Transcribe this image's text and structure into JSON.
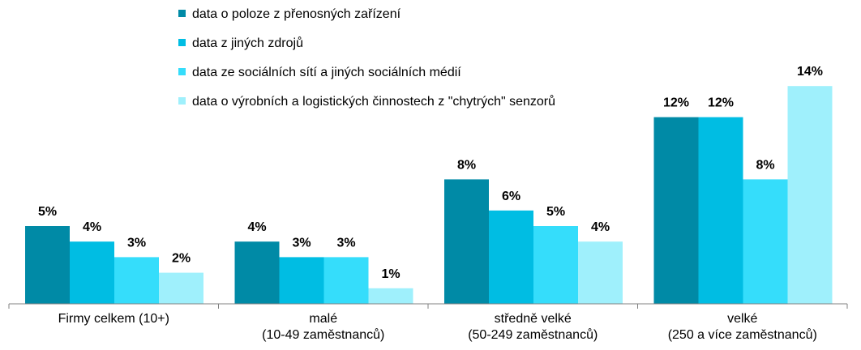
{
  "chart_data": {
    "type": "bar",
    "categories": [
      [
        "Firmy celkem (10+)"
      ],
      [
        "malé",
        "(10-49 zaměstnanců)"
      ],
      [
        "středně velké",
        "(50-249 zaměstnanců)"
      ],
      [
        "velké",
        "(250 a více zaměstnanců)"
      ]
    ],
    "series": [
      {
        "name": "data o poloze z přenosných zařízení",
        "color": "#008aa6",
        "values": [
          5,
          4,
          8,
          12
        ],
        "labels": [
          "5%",
          "4%",
          "8%",
          "12%"
        ]
      },
      {
        "name": "data z jiných zdrojů",
        "color": "#00bde3",
        "values": [
          4,
          3,
          6,
          12
        ],
        "labels": [
          "4%",
          "3%",
          "6%",
          "12%"
        ]
      },
      {
        "name": "data ze sociálních sítí a jiných sociálních médií",
        "color": "#35ddfb",
        "values": [
          3,
          3,
          5,
          8
        ],
        "labels": [
          "3%",
          "3%",
          "5%",
          "8%"
        ]
      },
      {
        "name": "data o výrobních a logistických činnostech z \"chytrých\" senzorů",
        "color": "#9ff0fc",
        "values": [
          2,
          1,
          4,
          14
        ],
        "labels": [
          "2%",
          "1%",
          "4%",
          "14%"
        ]
      }
    ],
    "title": "",
    "xlabel": "",
    "ylabel": "",
    "unit": "%",
    "ylim": [
      0,
      14
    ],
    "grid": false,
    "legend_position": "top-center"
  }
}
